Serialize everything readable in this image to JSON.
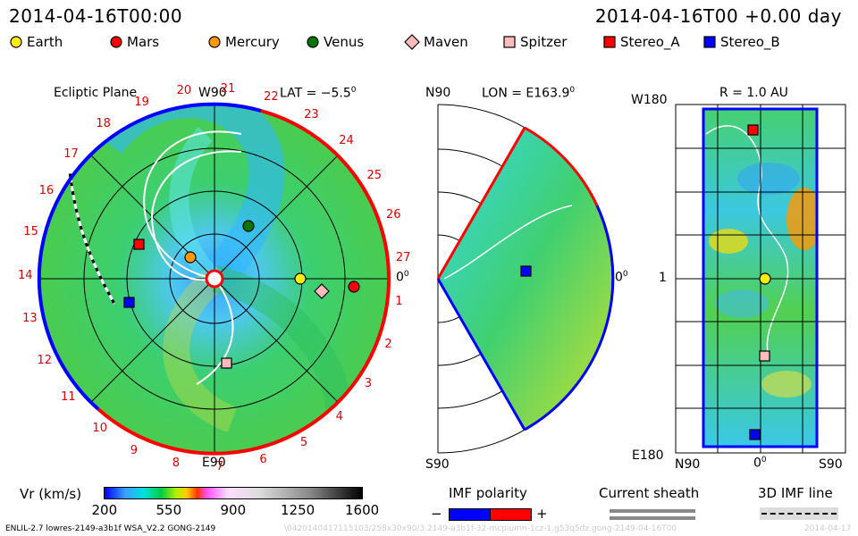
{
  "header": {
    "left_title": "2014-04-16T00:00",
    "right_title": "2014-04-16T00 +0.00 day"
  },
  "legend": [
    {
      "label": "Earth",
      "shape": "circle",
      "color": "#ffee00"
    },
    {
      "label": "Mars",
      "shape": "circle",
      "color": "#ff0000"
    },
    {
      "label": "Mercury",
      "shape": "circle",
      "color": "#ff9900"
    },
    {
      "label": "Venus",
      "shape": "circle",
      "color": "#007700"
    },
    {
      "label": "Maven",
      "shape": "diamond",
      "color": "#ffbbbb"
    },
    {
      "label": "Spitzer",
      "shape": "square",
      "color": "#ffbbbb"
    },
    {
      "label": "Stereo_A",
      "shape": "square",
      "color": "#ff0000"
    },
    {
      "label": "Stereo_B",
      "shape": "square",
      "color": "#0000ff"
    }
  ],
  "ecliptic": {
    "title": "Ecliptic Plane",
    "top_label": "W90",
    "bottom_label": "E90",
    "right_label": "0",
    "lat_label": "LAT = −5.5",
    "degree_mark": "0",
    "carrington_labels": [
      "1",
      "2",
      "3",
      "4",
      "5",
      "6",
      "7",
      "8",
      "9",
      "10",
      "11",
      "12",
      "13",
      "14",
      "15",
      "16",
      "17",
      "18",
      "19",
      "20",
      "21",
      "22",
      "23",
      "24",
      "25",
      "26",
      "27"
    ]
  },
  "meridional": {
    "top_label": "N90",
    "bottom_label": "S90",
    "right_label": "0",
    "lon_label": "LON = E163.9",
    "degree_mark": "0"
  },
  "sphere": {
    "r_label": "R = 1.0 AU",
    "top_label": "W180",
    "bottom_label": "E180",
    "mid_label": "1",
    "x_left": "N90",
    "x_mid": "0",
    "x_right": "S90",
    "degree_mark": "0"
  },
  "colorbar": {
    "label": "Vr (km/s)",
    "ticks": [
      "200",
      "550",
      "900",
      "1250",
      "1600"
    ],
    "min": 200,
    "max": 1600
  },
  "imf_polarity": {
    "label": "IMF polarity",
    "minus": "−",
    "plus": "+"
  },
  "current_sheath": {
    "label": "Current sheath"
  },
  "imf_line": {
    "label": "3D IMF line"
  },
  "footer": {
    "model": "ENLIL-2.7 lowres-2149-a3b1f WSA_V2.2 GONG-2149",
    "run_id": "\\0420140417115103/258x30x90/3.2149-a3b1f-32-mcpiumn-1cz-1.g53q5dz.gong-2149-04-16T00",
    "date_stub": "2014-04-17"
  }
}
